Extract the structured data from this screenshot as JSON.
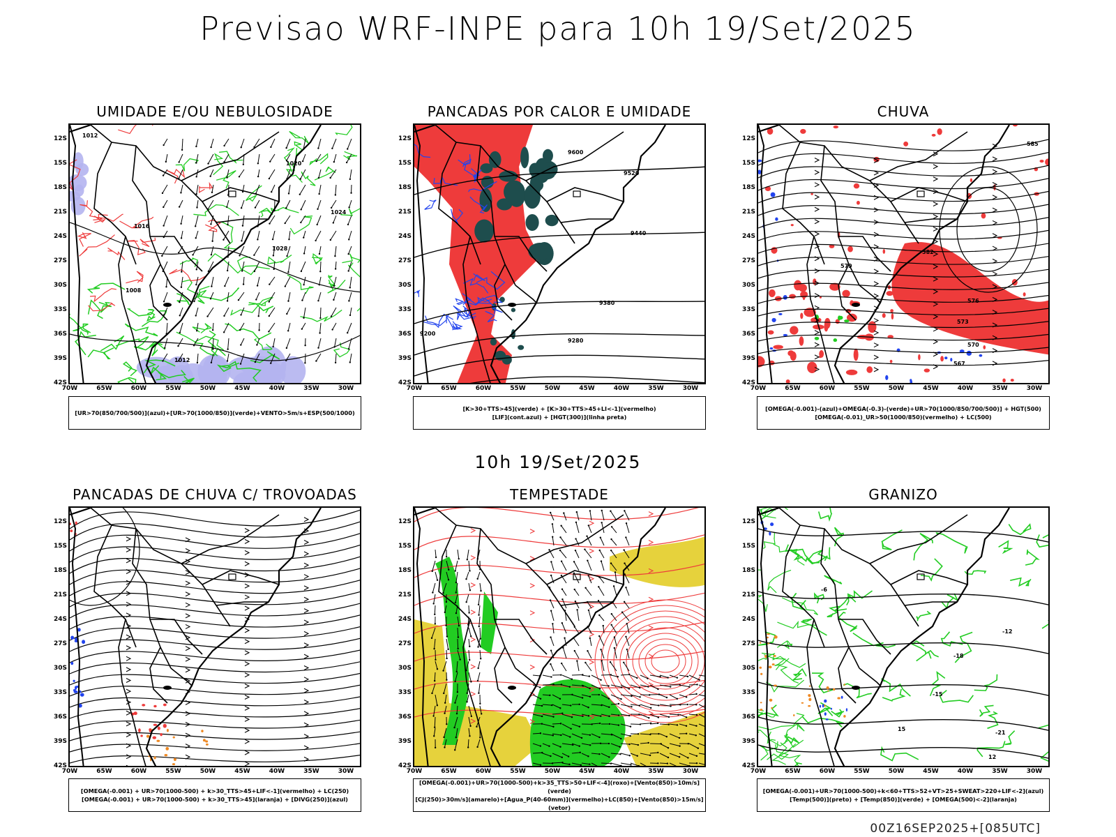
{
  "main_title": "Previsao WRF-INPE  para 10h 19/Set/2025",
  "mid_title": "10h 19/Set/2025",
  "footer": "00Z16SEP2025+[085UTC]",
  "lat_labels": [
    "12S",
    "15S",
    "18S",
    "21S",
    "24S",
    "27S",
    "30S",
    "33S",
    "36S",
    "39S",
    "42S"
  ],
  "lon_labels": [
    "70W",
    "65W",
    "60W",
    "55W",
    "50W",
    "45W",
    "40W",
    "35W",
    "30W"
  ],
  "colors": {
    "red": "#ee3b3b",
    "green": "#22cc22",
    "blue": "#2244ee",
    "lavender": "#b4b4f0",
    "darkteal": "#1e4d4d",
    "yellow": "#e6d23c",
    "orange": "#ee8822"
  },
  "panels": [
    {
      "title": "UMIDADE E/OU NEBULOSIDADE",
      "legend": [
        "[UR>70(850/700/500)](azul)+[UR>70(1000/850)](verde)+VENTO>5m/s+ESP(500/1000)"
      ],
      "contour_labels": [
        "1012",
        "1020",
        "1024",
        "1028",
        "1016",
        "1008",
        "1012"
      ]
    },
    {
      "title": "PANCADAS POR CALOR E UMIDADE",
      "legend": [
        "[K>30+TTS>45](verde) + [K>30+TTS>45+LI<-1](vermelho)",
        "[LIF](cont.azul) + [HGT(300)](linha preta)"
      ],
      "contour_labels": [
        "9600",
        "9520",
        "9440",
        "9380",
        "9280",
        "9200"
      ]
    },
    {
      "title": "CHUVA",
      "legend": [
        "[OMEGA(-0.001)-(azul)+OMEGA(-0.3)-(verde)+UR>70(1000/850/700/500)] + HGT(500)",
        "[OMEGA(-0.01)_UR>50(1000/850)(vermelho) + LC(500)"
      ],
      "contour_labels": [
        "585",
        "582",
        "579",
        "576",
        "573",
        "570",
        "567"
      ]
    },
    {
      "title": "PANCADAS DE CHUVA C/ TROVOADAS",
      "legend": [
        "[OMEGA(-0.001) + UR>70(1000-500) + k>30_TTS>45+LIF<-1](vermelho) + LC(250)",
        "[OMEGA(-0.001) + UR>70(1000-500) + k>30_TTS>45](laranja) + [DIVG(250)](azul)"
      ],
      "contour_labels": []
    },
    {
      "title": "TEMPESTADE",
      "legend": [
        "[OMEGA(-0.001)+UR>70(1000-500)+k>35_TTS>50+LIF<-4](roxo)+[Vento(850)>10m/s](verde)",
        "[CJ(250)>30m/s](amarelo)+[Agua_P(40-60mm)](vermelho)+LC(850)+[Vento(850)>15m/s](vetor)"
      ],
      "contour_labels": []
    },
    {
      "title": "GRANIZO",
      "legend": [
        "[OMEGA(-0.001)+UR>70(1000-500)+k<60+TTS>52+VT>25+SWEAT>220+LIF<-2](azul)",
        "[Temp(500)](preto) + [Temp(850)](verde) + [OMEGA(500)<-2](laranja)"
      ],
      "contour_labels": [
        "-6",
        "-12",
        "-15",
        "-18",
        "-21",
        "12",
        "15"
      ]
    }
  ]
}
